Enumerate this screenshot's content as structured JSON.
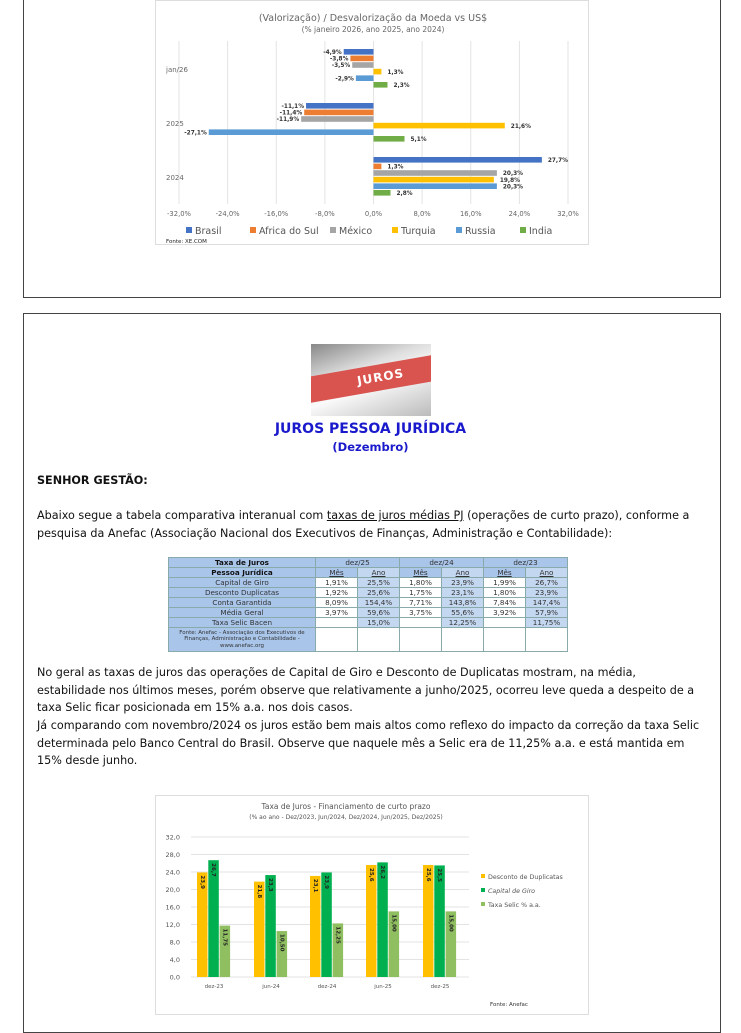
{
  "chart1": {
    "chart_data": {
      "type": "bar",
      "orientation": "horizontal",
      "title": "(Valorização) / Desvalorização da Moeda vs US$",
      "subtitle": "(% janeiro 2026, ano 2025, ano 2024)",
      "categories": [
        "jan/26",
        "2025",
        "2024"
      ],
      "xlim": [
        -32,
        32
      ],
      "xticks": [
        "-32,0%",
        "-24,0%",
        "-16,0%",
        "-8,0%",
        "0,0%",
        "8,0%",
        "16,0%",
        "24,0%",
        "32,0%"
      ],
      "grid": true,
      "legend": "bottom",
      "series": [
        {
          "name": "Brasil",
          "color": "#4472c4",
          "values": [
            -4.9,
            -11.1,
            27.7
          ],
          "labels": [
            "-4,9%",
            "-11,1%",
            "27,7%"
          ]
        },
        {
          "name": "Africa do Sul",
          "color": "#ed7d31",
          "values": [
            -3.8,
            -11.4,
            1.3
          ],
          "labels": [
            "-3,8%",
            "-11,4%",
            "1,3%"
          ]
        },
        {
          "name": "México",
          "color": "#a5a5a5",
          "values": [
            -3.5,
            -11.9,
            20.3
          ],
          "labels": [
            "-3,5%",
            "-11,9%",
            "20,3%"
          ]
        },
        {
          "name": "Turquia",
          "color": "#ffc000",
          "values": [
            1.3,
            21.6,
            19.8
          ],
          "labels": [
            "1,3%",
            "21,6%",
            "19,8%"
          ]
        },
        {
          "name": "Russia",
          "color": "#5b9bd5",
          "values": [
            -2.9,
            -27.1,
            20.3
          ],
          "labels": [
            "-2,9%",
            "-27,1%",
            "20,3%"
          ]
        },
        {
          "name": "India",
          "color": "#70ad47",
          "values": [
            2.3,
            5.1,
            2.8
          ],
          "labels": [
            "2,3%",
            "5,1%",
            "2,8%"
          ]
        }
      ],
      "source": "Fonte: XE.COM"
    }
  },
  "image_label": "JUROS",
  "heading": {
    "title": "JUROS PESSOA JURÍDICA",
    "subtitle": "(Dezembro)"
  },
  "greeting": "SENHOR GESTÃO:",
  "intro": {
    "before": "Abaixo segue a  tabela comparativa interanual com ",
    "link": "taxas de juros médias PJ",
    "after": " (operações de curto prazo), conforme a pesquisa da Anefac (Associação Nacional dos Executivos de Finanças, Administração e Contabilidade):"
  },
  "table": {
    "header1": "Taxa de Juros",
    "header2": "Pessoa Jurídica",
    "periods": [
      "dez/25",
      "dez/24",
      "dez/23"
    ],
    "sub": [
      "Mês",
      "Ano"
    ],
    "rows": [
      [
        "Capital de Giro",
        "1,91%",
        "25,5%",
        "1,80%",
        "23,9%",
        "1,99%",
        "26,7%"
      ],
      [
        "Desconto Duplicatas",
        "1,92%",
        "25,6%",
        "1,75%",
        "23,1%",
        "1,80%",
        "23,9%"
      ],
      [
        "Conta Garantida",
        "8,09%",
        "154,4%",
        "7,71%",
        "143,8%",
        "7,84%",
        "147,4%"
      ],
      [
        "Média Geral",
        "3,97%",
        "59,6%",
        "3,75%",
        "55,6%",
        "3,92%",
        "57,9%"
      ],
      [
        "Taxa Selic Bacen",
        "",
        "15,0%",
        "",
        "12,25%",
        "",
        "11,75%"
      ]
    ],
    "source": "Fonte: Anefac - Associação dos Executivos de Finanças, Administração e Contabilidade - www.anefac.org"
  },
  "body": [
    "No geral as taxas de juros das operações de Capital de Giro e Desconto de Duplicatas mostram, na média, estabilidade nos últimos meses, porém observe que relativamente a junho/2025, ocorreu leve queda a despeito de a taxa Selic ficar posicionada em 15% a.a. nos dois casos.",
    "Já comparando com novembro/2024 os juros estão bem mais altos como reflexo do impacto da correção da taxa Selic determinada pelo Banco Central do Brasil. Observe que naquele mês a Selic era de 11,25% a.a. e está mantida em 15% desde junho."
  ],
  "chart2": {
    "chart_data": {
      "type": "bar",
      "title": "Taxa de Juros - Financiamento de curto prazo",
      "subtitle": "(% ao ano - Dez/2023, Jun/2024, Dez/2024, Jun/2025, Dez/2025)",
      "categories": [
        "dez-23",
        "jun-24",
        "dez-24",
        "jun-25",
        "dez-25"
      ],
      "ylim": [
        0,
        32
      ],
      "yticks": [
        "0,0",
        "4,0",
        "8,0",
        "12,0",
        "16,0",
        "20,0",
        "24,0",
        "28,0",
        "32,0"
      ],
      "grid": true,
      "legend": "right",
      "series": [
        {
          "name": "Desconto de Duplicatas",
          "color": "#ffc000",
          "values": [
            23.9,
            21.8,
            23.1,
            25.6,
            25.6
          ],
          "labels": [
            "23,9",
            "21,8",
            "23,1",
            "25,6",
            "25,6"
          ]
        },
        {
          "name": "Capital de Giro",
          "color": "#00b050",
          "values": [
            26.7,
            23.3,
            23.9,
            26.2,
            25.5
          ],
          "labels": [
            "26,7",
            "23,3",
            "23,9",
            "26,2",
            "25,5"
          ]
        },
        {
          "name": "Taxa Selic % a.a.",
          "color": "#8fbf60",
          "values": [
            11.75,
            10.5,
            12.25,
            15.0,
            15.0
          ],
          "labels": [
            "11,75",
            "10,50",
            "12,25",
            "15,00",
            "15,00"
          ]
        }
      ],
      "source": "Fonte: Anefac"
    }
  }
}
